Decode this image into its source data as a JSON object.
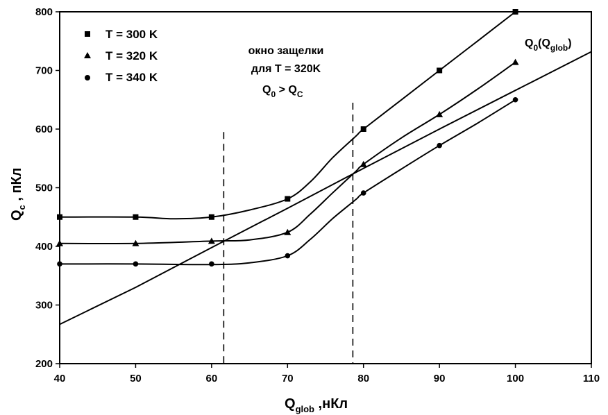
{
  "chart_data": {
    "type": "line",
    "xlabel": {
      "main": "Q",
      "sub": "glob",
      "unit": " ,нКл"
    },
    "ylabel": {
      "main": "Q",
      "sub": "c",
      "unit": " , пКл"
    },
    "xlim": [
      40,
      110
    ],
    "ylim": [
      200,
      800
    ],
    "xticks": [
      "40",
      "50",
      "60",
      "70",
      "80",
      "90",
      "100",
      "110"
    ],
    "yticks": [
      "200",
      "300",
      "400",
      "500",
      "600",
      "700",
      "800"
    ],
    "grid": false,
    "legend_position": "top-left",
    "series": [
      {
        "name": "T = 300 K",
        "marker": "square",
        "x": [
          40,
          50,
          60,
          70,
          80,
          90,
          100
        ],
        "y": [
          450,
          450,
          450,
          481,
          600,
          700,
          800
        ],
        "curve_x": [
          40,
          50,
          55,
          60,
          65,
          70,
          73,
          76,
          79,
          80,
          85,
          90,
          95,
          100
        ],
        "curve_y": [
          450,
          450,
          447,
          450,
          462,
          481,
          510,
          552,
          588,
          600,
          650,
          700,
          750,
          800
        ]
      },
      {
        "name": "T = 320 K",
        "marker": "triangle",
        "x": [
          40,
          50,
          60,
          70,
          80,
          90,
          100
        ],
        "y": [
          405,
          405,
          409,
          424,
          540,
          625,
          714
        ],
        "curve_x": [
          40,
          50,
          60,
          65,
          70,
          73,
          76,
          79,
          80,
          85,
          90,
          95,
          100
        ],
        "curve_y": [
          405,
          405,
          409,
          411,
          424,
          455,
          492,
          528,
          540,
          585,
          625,
          668,
          714
        ]
      },
      {
        "name": "T = 340 K",
        "marker": "circle",
        "x": [
          40,
          50,
          60,
          70,
          80,
          90,
          100
        ],
        "y": [
          370,
          370,
          370,
          384,
          491,
          572,
          650
        ],
        "curve_x": [
          40,
          50,
          60,
          65,
          70,
          73,
          76,
          79,
          80,
          85,
          90,
          95,
          100
        ],
        "curve_y": [
          370,
          370,
          369,
          372,
          384,
          412,
          448,
          480,
          491,
          532,
          572,
          610,
          650
        ]
      },
      {
        "name": "",
        "marker": "none",
        "x": [
          40,
          50,
          60,
          70,
          80,
          90,
          100,
          110
        ],
        "y": [
          267,
          330,
          398,
          465,
          533,
          600,
          666,
          732
        ]
      }
    ],
    "curve_label": {
      "main": "Q",
      "sub1": "0",
      "paren_open": "(Q",
      "sub2": "glob",
      "paren_close": ")"
    },
    "vlines": [
      61.6,
      78.6
    ],
    "window_annotation": {
      "line1": "окно защелки",
      "line2": "для T = 320K",
      "cond_a": "Q",
      "cond_a_sub": "0",
      "cond_op": " > Q",
      "cond_b_sub": "C"
    }
  }
}
